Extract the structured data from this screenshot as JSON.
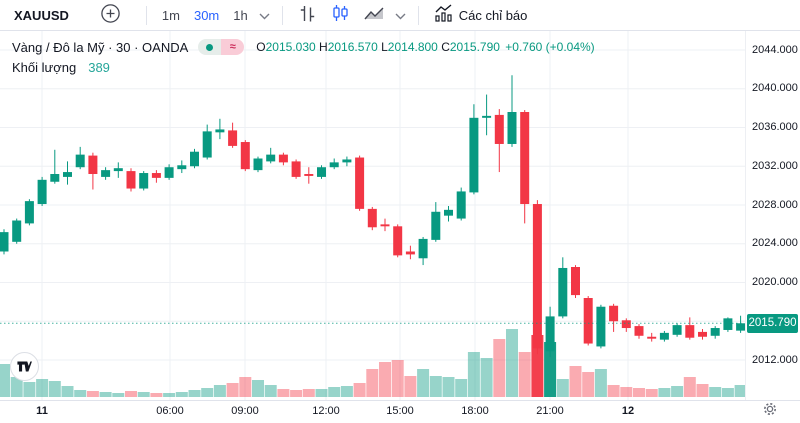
{
  "toolbar": {
    "symbol": "XAUUSD",
    "intervals": [
      {
        "label": "1m",
        "active": false
      },
      {
        "label": "30m",
        "active": true
      },
      {
        "label": "1h",
        "active": false
      }
    ],
    "indicators_label": "Các chỉ báo"
  },
  "legend": {
    "title": "Vàng / Đô la Mỹ · 30 · OANDA",
    "status_icons": [
      "market-open-dot",
      "delayed-data-approx"
    ],
    "ohlc": {
      "o_label": "O",
      "o": "2015.030",
      "h_label": "H",
      "h": "2016.570",
      "l_label": "L",
      "l": "2014.800",
      "c_label": "C",
      "c": "2015.790",
      "change": "+0.760 (+0.04%)"
    },
    "volume_label": "Khối lượng",
    "volume_value": "389"
  },
  "colors": {
    "up": "#089981",
    "down": "#f23645",
    "accent_blue": "#2962ff",
    "text": "#131722",
    "muted": "#787b86",
    "grid": "#eef0f4",
    "badge_bg": "#089981"
  },
  "chart_data": {
    "type": "candlestick",
    "symbol": "XAUUSD",
    "interval": "30m",
    "title": "Vàng / Đô la Mỹ · 30 · OANDA",
    "legend_position": "top-left",
    "grid": true,
    "price_axis": {
      "ylim": [
        2009.5,
        2045.8
      ],
      "grid_prices": [
        2044,
        2040,
        2036,
        2032,
        2028,
        2024,
        2020,
        2016,
        2012
      ],
      "labels": [
        {
          "price": 2044,
          "text": "2044.000"
        },
        {
          "price": 2040,
          "text": "2040.000"
        },
        {
          "price": 2036,
          "text": "2036.000"
        },
        {
          "price": 2032,
          "text": "2032.000"
        },
        {
          "price": 2028,
          "text": "2028.000"
        },
        {
          "price": 2024,
          "text": "2024.000"
        },
        {
          "price": 2020,
          "text": "2020.000"
        },
        {
          "price": 2012,
          "text": "2012.000"
        }
      ],
      "last_price": {
        "value": 2015.79,
        "text": "2015.790"
      }
    },
    "time_axis": [
      {
        "text": "11",
        "x": 42,
        "bold": true
      },
      {
        "text": "06:00",
        "x": 170,
        "bold": false
      },
      {
        "text": "09:00",
        "x": 245,
        "bold": false
      },
      {
        "text": "12:00",
        "x": 326,
        "bold": false
      },
      {
        "text": "15:00",
        "x": 400,
        "bold": false
      },
      {
        "text": "18:00",
        "x": 475,
        "bold": false
      },
      {
        "text": "21:00",
        "x": 550,
        "bold": false
      },
      {
        "text": "12",
        "x": 628,
        "bold": true
      }
    ],
    "candles_format": [
      "open",
      "high",
      "low",
      "close"
    ],
    "candles": [
      [
        2023.2,
        2025.5,
        2022.9,
        2025.2
      ],
      [
        2024.2,
        2026.6,
        2024.0,
        2026.4
      ],
      [
        2026.1,
        2028.6,
        2025.9,
        2028.4
      ],
      [
        2028.1,
        2030.9,
        2027.9,
        2030.6
      ],
      [
        2030.4,
        2033.7,
        2030.2,
        2031.2
      ],
      [
        2030.9,
        2032.5,
        2030.1,
        2031.4
      ],
      [
        2031.9,
        2034.0,
        2031.7,
        2033.2
      ],
      [
        2033.1,
        2033.4,
        2029.6,
        2031.2
      ],
      [
        2030.9,
        2031.9,
        2030.6,
        2031.6
      ],
      [
        2031.5,
        2032.4,
        2030.8,
        2031.8
      ],
      [
        2031.5,
        2031.8,
        2029.4,
        2029.7
      ],
      [
        2029.7,
        2031.5,
        2029.5,
        2031.3
      ],
      [
        2031.3,
        2031.6,
        2030.3,
        2030.8
      ],
      [
        2030.8,
        2032.2,
        2030.6,
        2031.9
      ],
      [
        2031.7,
        2032.6,
        2031.3,
        2032.1
      ],
      [
        2032.0,
        2033.8,
        2031.8,
        2033.5
      ],
      [
        2032.9,
        2036.3,
        2032.7,
        2035.6
      ],
      [
        2035.5,
        2036.9,
        2034.8,
        2035.8
      ],
      [
        2035.7,
        2036.5,
        2033.9,
        2034.1
      ],
      [
        2034.5,
        2034.7,
        2031.5,
        2031.7
      ],
      [
        2031.6,
        2033.0,
        2031.4,
        2032.8
      ],
      [
        2032.5,
        2033.9,
        2032.3,
        2033.2
      ],
      [
        2033.2,
        2033.4,
        2032.1,
        2032.4
      ],
      [
        2032.5,
        2032.7,
        2030.7,
        2030.9
      ],
      [
        2031.2,
        2031.9,
        2030.2,
        2031.0
      ],
      [
        2030.9,
        2032.1,
        2030.7,
        2031.9
      ],
      [
        2031.9,
        2032.8,
        2031.7,
        2032.4
      ],
      [
        2032.4,
        2033.0,
        2032.0,
        2032.7
      ],
      [
        2032.9,
        2033.1,
        2027.4,
        2027.6
      ],
      [
        2027.6,
        2027.8,
        2025.4,
        2025.7
      ],
      [
        2026.0,
        2026.6,
        2025.3,
        2025.8
      ],
      [
        2025.8,
        2026.0,
        2022.6,
        2022.8
      ],
      [
        2023.2,
        2023.8,
        2022.4,
        2022.9
      ],
      [
        2022.5,
        2024.7,
        2021.8,
        2024.5
      ],
      [
        2024.4,
        2028.3,
        2024.2,
        2027.3
      ],
      [
        2026.9,
        2027.9,
        2026.3,
        2027.5
      ],
      [
        2026.6,
        2029.8,
        2026.4,
        2029.4
      ],
      [
        2029.3,
        2038.4,
        2029.1,
        2037.0
      ],
      [
        2037.0,
        2039.4,
        2035.2,
        2037.2
      ],
      [
        2037.3,
        2037.9,
        2031.4,
        2034.3
      ],
      [
        2034.3,
        2041.4,
        2034.0,
        2037.6
      ],
      [
        2037.6,
        2037.8,
        2026.1,
        2028.1
      ],
      [
        2028.1,
        2028.5,
        2012.6,
        2013.2
      ],
      [
        2012.9,
        2017.5,
        2012.3,
        2016.5
      ],
      [
        2016.5,
        2022.6,
        2016.3,
        2021.5
      ],
      [
        2021.6,
        2021.8,
        2018.4,
        2018.7
      ],
      [
        2018.4,
        2018.6,
        2013.5,
        2013.7
      ],
      [
        2013.4,
        2017.7,
        2013.2,
        2017.5
      ],
      [
        2017.6,
        2017.8,
        2014.9,
        2016.0
      ],
      [
        2016.1,
        2016.3,
        2014.9,
        2015.3
      ],
      [
        2015.5,
        2015.7,
        2014.2,
        2014.5
      ],
      [
        2014.4,
        2014.8,
        2013.9,
        2014.2
      ],
      [
        2014.1,
        2015.0,
        2013.9,
        2014.8
      ],
      [
        2014.6,
        2015.8,
        2014.4,
        2015.6
      ],
      [
        2015.6,
        2016.4,
        2014.1,
        2014.3
      ],
      [
        2014.9,
        2015.2,
        2014.1,
        2014.4
      ],
      [
        2014.5,
        2015.5,
        2014.2,
        2015.3
      ],
      [
        2015.1,
        2016.4,
        2014.9,
        2016.3
      ],
      [
        2015.03,
        2016.57,
        2014.8,
        2015.79
      ]
    ],
    "volumes": [
      33,
      20,
      15,
      18,
      16,
      11,
      7,
      6,
      5,
      4,
      6,
      5,
      4,
      4,
      5,
      7,
      9,
      12,
      14,
      20,
      17,
      12,
      8,
      7,
      8,
      8,
      10,
      11,
      14,
      28,
      35,
      37,
      21,
      28,
      21,
      20,
      18,
      45,
      39,
      58,
      68,
      45,
      62,
      55,
      18,
      31,
      25,
      28,
      12,
      10,
      9,
      8,
      9,
      11,
      20,
      13,
      10,
      9,
      12
    ],
    "strong_volume_indices": [
      42,
      43
    ]
  }
}
